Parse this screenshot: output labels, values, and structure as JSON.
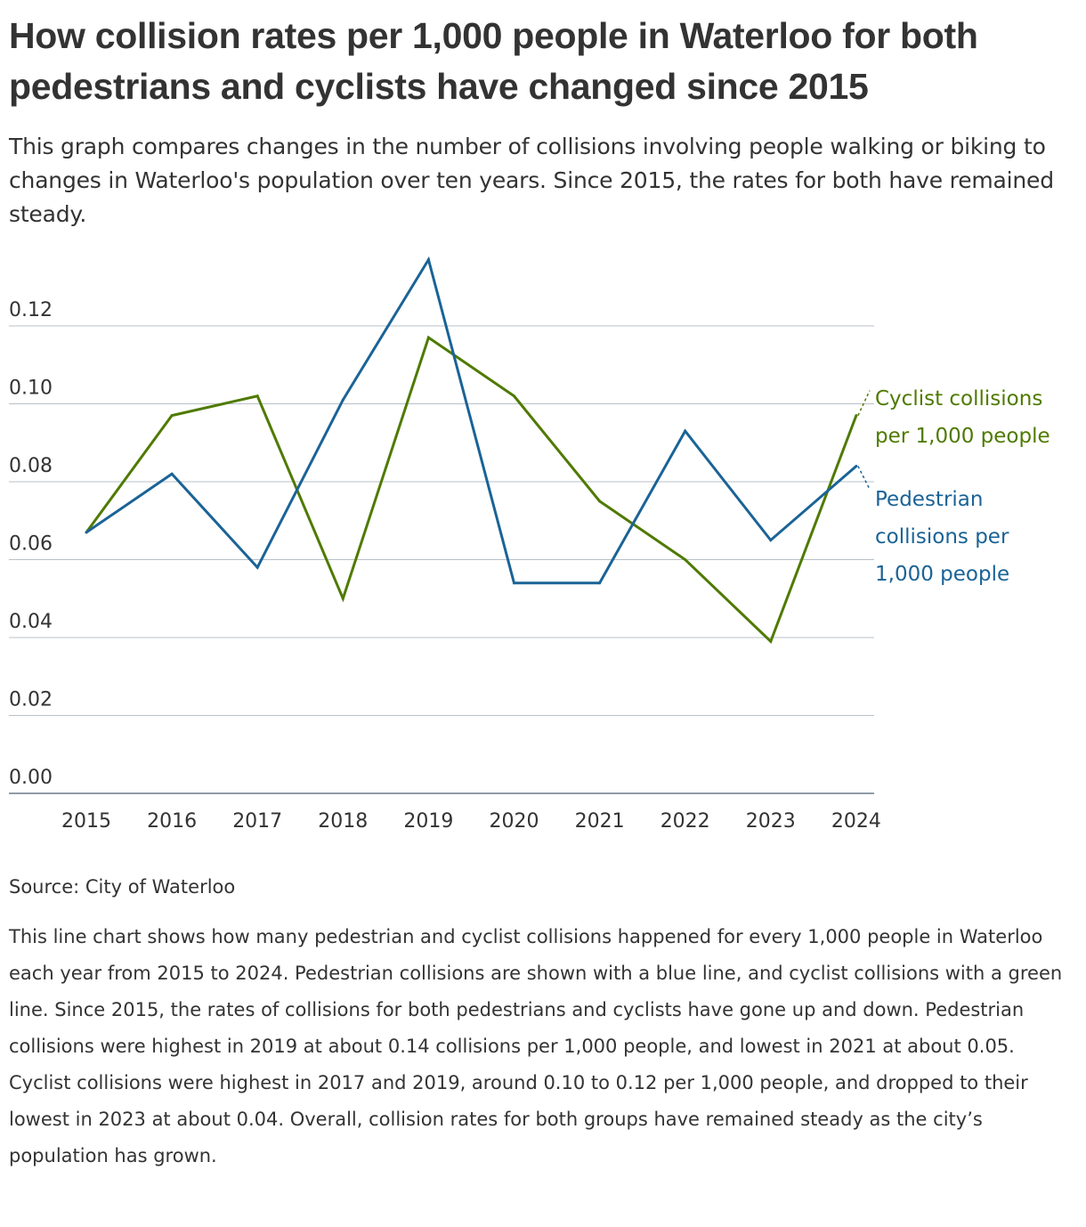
{
  "header": {
    "title": "How collision rates per 1,000 people in Waterloo for both pedestrians and cyclists have changed since 2015",
    "subtitle": "This graph compares changes in the number of collisions involving people walking or biking to changes in Waterloo's population over ten years. Since 2015, the rates for both have remained steady."
  },
  "chart_data": {
    "type": "line",
    "title": "How collision rates per 1,000 people in Waterloo for both pedestrians and cyclists have changed since 2015",
    "xlabel": "",
    "ylabel": "",
    "x": [
      "2015",
      "2016",
      "2017",
      "2018",
      "2019",
      "2020",
      "2021",
      "2022",
      "2023",
      "2024"
    ],
    "ylim": [
      0,
      0.13
    ],
    "yticks": [
      "0.00",
      "0.02",
      "0.04",
      "0.06",
      "0.08",
      "0.10",
      "0.12"
    ],
    "grid": true,
    "legend": "direct labels at right end of lines",
    "series": [
      {
        "name": "Cyclist collisions per 1,000 people",
        "label_lines": [
          "Cyclist collisions",
          "per 1,000 people"
        ],
        "color": "#4f7a00",
        "values": [
          0.067,
          0.097,
          0.102,
          0.05,
          0.117,
          0.102,
          0.075,
          0.06,
          0.039,
          0.097
        ]
      },
      {
        "name": "Pedestrian collisions per 1,000 people",
        "label_lines": [
          "Pedestrian",
          "collisions per",
          "1,000 people"
        ],
        "color": "#1a6396",
        "values": [
          0.067,
          0.082,
          0.058,
          0.101,
          0.137,
          0.054,
          0.054,
          0.093,
          0.065,
          0.084
        ]
      }
    ]
  },
  "footer": {
    "source": "Source: City of Waterloo",
    "description": "This line chart shows how many pedestrian and cyclist collisions happened for every 1,000 people in Waterloo each year from 2015 to 2024. Pedestrian collisions are shown with a blue line, and cyclist collisions with a green line. Since 2015, the rates of collisions for both pedestrians and cyclists have gone up and down. Pedestrian collisions were highest in 2019 at about 0.14 collisions per 1,000 people, and lowest in 2021 at about 0.05. Cyclist collisions were highest in 2017 and 2019, around 0.10 to 0.12 per 1,000 people, and dropped to their lowest in 2023 at about 0.04. Overall, collision rates for both groups have remained steady as the city’s population has grown."
  }
}
